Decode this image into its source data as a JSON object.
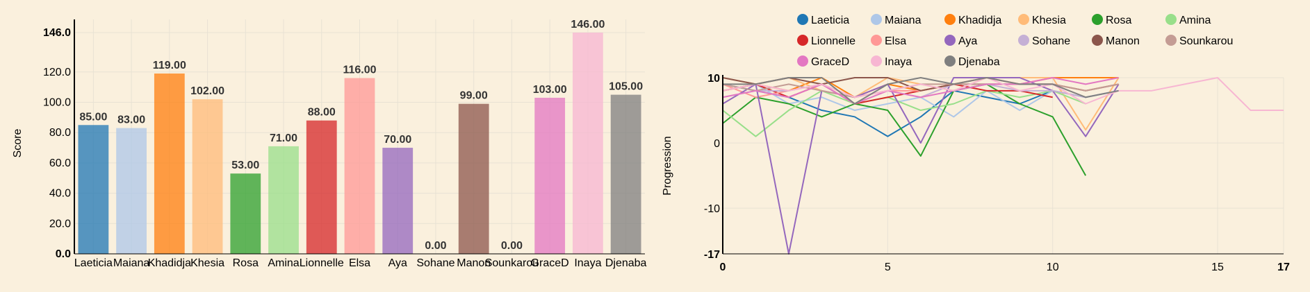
{
  "chart_data": [
    {
      "type": "bar",
      "ylabel": "Score",
      "ylim": [
        0,
        146
      ],
      "yticks": [
        "0.0",
        "20.0",
        "40.0",
        "60.0",
        "80.0",
        "100.0",
        "120.0",
        "146.0"
      ],
      "grid": true,
      "categories": [
        "Laeticia",
        "Maiana",
        "Khadidja",
        "Khesia",
        "Rosa",
        "Amina",
        "Lionnelle",
        "Elsa",
        "Aya",
        "Sohane",
        "Manon",
        "Sounkarou",
        "GraceD",
        "Inaya",
        "Djenaba"
      ],
      "values": [
        85,
        83,
        119,
        102,
        53,
        71,
        88,
        116,
        70,
        0,
        99,
        0,
        103,
        146,
        105
      ],
      "value_labels": [
        "85.00",
        "83.00",
        "119.00",
        "102.00",
        "53.00",
        "71.00",
        "88.00",
        "116.00",
        "70.00",
        "0.00",
        "99.00",
        "0.00",
        "103.00",
        "146.00",
        "105.00"
      ],
      "colors": [
        "#1f77b4",
        "#aec7e8",
        "#ff7f0e",
        "#ffbb78",
        "#2ca02c",
        "#98df8a",
        "#d62728",
        "#ff9896",
        "#9467bd",
        "#c5b0d5",
        "#8c564b",
        "#c49c94",
        "#e377c2",
        "#f7b6d2",
        "#7f7f7f"
      ]
    },
    {
      "type": "line",
      "ylabel": "Progression",
      "xlim": [
        0,
        17
      ],
      "ylim": [
        -17,
        10
      ],
      "xticks": [
        "0",
        "5",
        "10",
        "15",
        "17"
      ],
      "yticks": [
        "-17",
        "-10",
        "0",
        "10"
      ],
      "grid": true,
      "legend_position": "top",
      "series": [
        {
          "name": "Laeticia",
          "color": "#1f77b4",
          "x": [
            0,
            1,
            2,
            3,
            4,
            5,
            6,
            7,
            8,
            9,
            10,
            11,
            12
          ],
          "y": [
            9,
            8,
            7,
            5,
            4,
            1,
            4,
            8,
            7,
            6,
            8,
            7,
            8
          ]
        },
        {
          "name": "Maiana",
          "color": "#aec7e8",
          "x": [
            0,
            1,
            2,
            3,
            4,
            5,
            6,
            7,
            8,
            9,
            10,
            11,
            12
          ],
          "y": [
            8,
            9,
            6,
            7,
            5,
            6,
            7,
            4,
            8,
            5,
            8,
            7,
            8
          ]
        },
        {
          "name": "Khadidja",
          "color": "#ff7f0e",
          "x": [
            0,
            1,
            2,
            3,
            4,
            5,
            6,
            7,
            8,
            9,
            10,
            11,
            12
          ],
          "y": [
            8,
            9,
            8,
            10,
            7,
            9,
            8,
            9,
            10,
            9,
            10,
            10,
            10
          ]
        },
        {
          "name": "Khesia",
          "color": "#ffbb78",
          "x": [
            0,
            1,
            2,
            3,
            4,
            5,
            6,
            7,
            8,
            9,
            10,
            11,
            12
          ],
          "y": [
            10,
            9,
            10,
            8,
            7,
            10,
            9,
            8,
            10,
            10,
            10,
            2,
            10
          ]
        },
        {
          "name": "Rosa",
          "color": "#2ca02c",
          "x": [
            0,
            1,
            2,
            3,
            4,
            5,
            6,
            7,
            8,
            9,
            10,
            11
          ],
          "y": [
            3,
            7,
            6,
            4,
            6,
            5,
            -2,
            8,
            9,
            6,
            4,
            -5
          ]
        },
        {
          "name": "Amina",
          "color": "#98df8a",
          "x": [
            0,
            1,
            2,
            3,
            4,
            5,
            6,
            7,
            8,
            9,
            10,
            11
          ],
          "y": [
            5,
            1,
            5,
            8,
            6,
            7,
            5,
            6,
            8,
            7,
            8,
            6
          ]
        },
        {
          "name": "Lionnelle",
          "color": "#d62728",
          "x": [
            0,
            1,
            2,
            3,
            4,
            5,
            6,
            7,
            8,
            9,
            10
          ],
          "y": [
            8,
            9,
            7,
            9,
            6,
            7,
            8,
            9,
            8,
            8,
            7
          ]
        },
        {
          "name": "Elsa",
          "color": "#ff9896",
          "x": [
            0,
            1,
            2,
            3,
            4,
            5,
            6,
            7,
            8,
            9,
            10,
            11,
            12
          ],
          "y": [
            9,
            7,
            8,
            9,
            7,
            8,
            8,
            9,
            10,
            9,
            9,
            8,
            9
          ]
        },
        {
          "name": "Aya",
          "color": "#9467bd",
          "x": [
            0,
            1,
            2,
            3,
            4,
            5,
            6,
            7,
            8,
            9,
            10,
            11,
            12
          ],
          "y": [
            6,
            9,
            -17,
            8,
            7,
            9,
            0,
            10,
            10,
            10,
            8,
            1,
            9
          ]
        },
        {
          "name": "Sohane",
          "color": "#c5b0d5",
          "x": [
            0,
            1,
            2,
            3,
            4,
            5,
            6,
            7,
            8,
            9,
            10,
            11,
            12
          ],
          "y": [
            7,
            8,
            8,
            9,
            6,
            8,
            7,
            9,
            9,
            8,
            8,
            7,
            8
          ]
        },
        {
          "name": "Manon",
          "color": "#8c564b",
          "x": [
            0,
            1,
            2,
            3,
            4,
            5,
            6,
            7,
            8,
            9,
            10,
            11,
            12
          ],
          "y": [
            10,
            9,
            10,
            9,
            10,
            10,
            8,
            9,
            9,
            9,
            9,
            8,
            9
          ]
        },
        {
          "name": "Sounkarou",
          "color": "#c49c94",
          "x": [
            0,
            1,
            2,
            3,
            4,
            5,
            6,
            7,
            8,
            9,
            10,
            11,
            12
          ],
          "y": [
            9,
            8,
            9,
            8,
            7,
            8,
            9,
            9,
            9,
            9,
            9,
            8,
            9
          ]
        },
        {
          "name": "GraceD",
          "color": "#e377c2",
          "x": [
            0,
            1,
            2,
            3,
            4,
            5,
            6,
            7,
            8,
            9,
            10,
            11,
            12
          ],
          "y": [
            7,
            8,
            7,
            9,
            6,
            8,
            7,
            8,
            9,
            9,
            10,
            9,
            10
          ]
        },
        {
          "name": "Inaya",
          "color": "#f7b6d2",
          "x": [
            0,
            1,
            2,
            3,
            4,
            5,
            6,
            7,
            8,
            9,
            10,
            11,
            12,
            13,
            14,
            15,
            16,
            17
          ],
          "y": [
            8,
            9,
            8,
            9,
            7,
            8,
            9,
            8,
            10,
            8,
            9,
            6,
            8,
            8,
            9,
            10,
            5,
            5
          ]
        },
        {
          "name": "Djenaba",
          "color": "#7f7f7f",
          "x": [
            0,
            1,
            2,
            3,
            4,
            5,
            6,
            7,
            8,
            9,
            10,
            11,
            12
          ],
          "y": [
            9,
            9,
            10,
            10,
            6,
            9,
            10,
            9,
            10,
            9,
            9,
            7,
            8
          ]
        }
      ]
    }
  ]
}
